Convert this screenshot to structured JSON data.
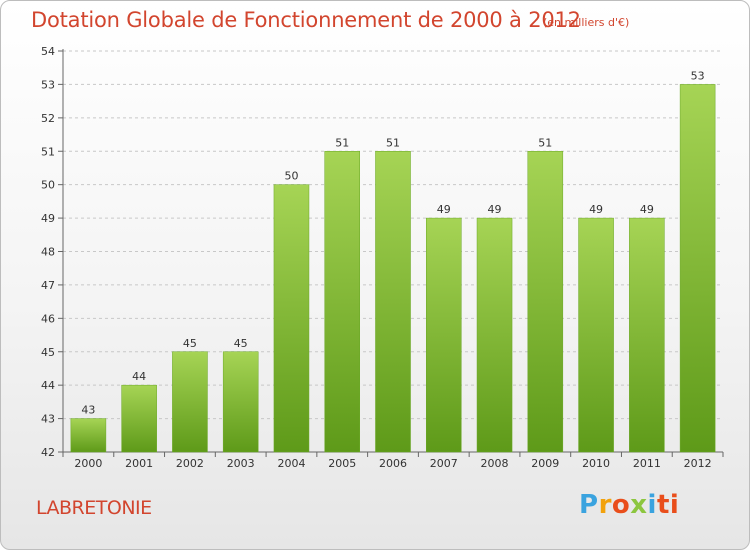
{
  "chart_data": {
    "type": "bar",
    "title": "Dotation Globale de Fonctionnement de 2000 à 2012",
    "unit_label": "(en milliers d'€)",
    "categories": [
      "2000",
      "2001",
      "2002",
      "2003",
      "2004",
      "2005",
      "2006",
      "2007",
      "2008",
      "2009",
      "2010",
      "2011",
      "2012"
    ],
    "values": [
      43,
      44,
      45,
      45,
      50,
      51,
      51,
      49,
      49,
      51,
      49,
      49,
      53
    ],
    "ylim": [
      42,
      54
    ],
    "yticks": [
      42,
      43,
      44,
      45,
      46,
      47,
      48,
      49,
      50,
      51,
      52,
      53,
      54
    ],
    "grid": true,
    "bar_color": "#7cb832",
    "bar_color_light": "#a6d455",
    "bar_color_dark": "#5e9a19"
  },
  "commune": "LABRETONIE",
  "logo": {
    "letters": [
      "P",
      "r",
      "o",
      "x",
      "i",
      "ti"
    ]
  }
}
